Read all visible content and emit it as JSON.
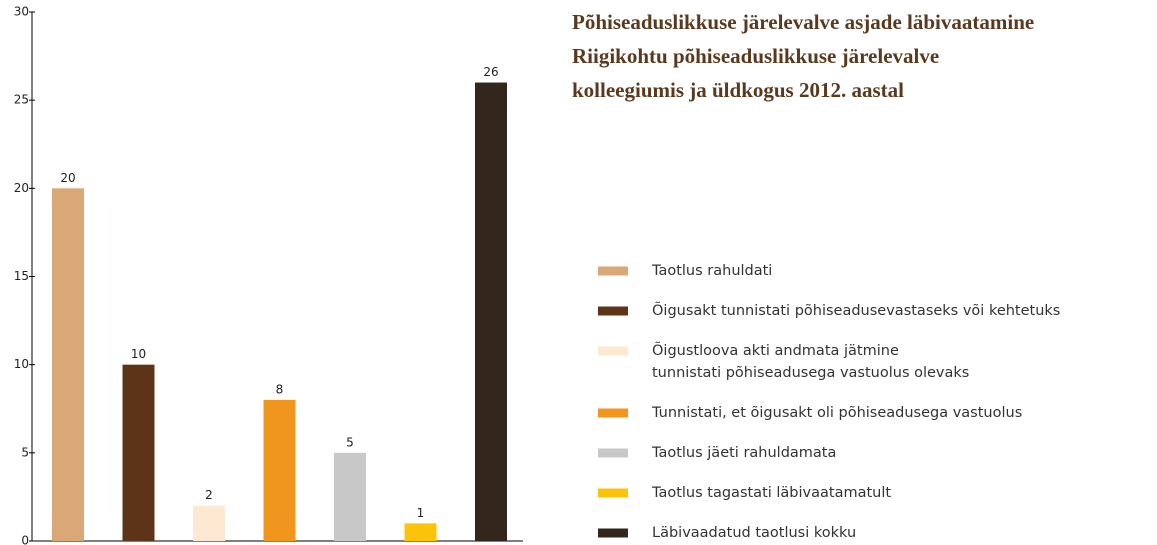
{
  "chart_data": {
    "type": "bar",
    "title": [
      "Põhiseaduslikkuse järelevalve asjade läbivaatamine",
      "Riigikohtu põhiseaduslikkuse järelevalve",
      "kolleegiumis ja üldkogus 2012. aastal"
    ],
    "categories": [
      "Taotlus rahuldati",
      "Õigusakt tunnistati põhiseadusevastaseks või kehtetuks",
      [
        "Õigustloova akti andmata jätmine",
        "tunnistati põhiseadusega vastuolus olevaks"
      ],
      "Tunnistati, et õigusakt oli põhiseadusega vastuolus",
      "Taotlus jäeti rahuldamata",
      "Taotlus tagastati läbivaatamatult",
      "Läbivaadatud taotlusi kokku"
    ],
    "values": [
      20,
      10,
      2,
      8,
      5,
      1,
      26
    ],
    "colors": [
      "#d9a876",
      "#5e3419",
      "#fde8d2",
      "#f0951e",
      "#c8c8c8",
      "#fcc30b",
      "#33261c"
    ],
    "ylim": [
      0,
      30
    ],
    "yticks": [
      0,
      5,
      10,
      15,
      20,
      25,
      30
    ]
  }
}
